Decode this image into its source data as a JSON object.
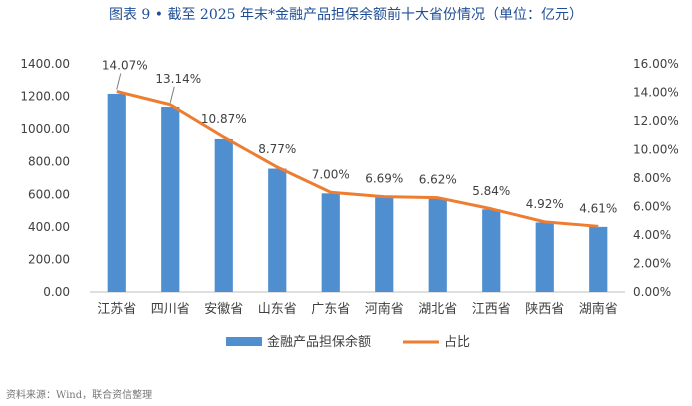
{
  "chart_data": {
    "type": "bar+line",
    "title": "图表 9 •  截至 2025 年末*金融产品担保余额前十大省份情况（单位：亿元）",
    "categories": [
      "江苏省",
      "四川省",
      "安徽省",
      "山东省",
      "广东省",
      "河南省",
      "湖北省",
      "江西省",
      "陕西省",
      "湖南省"
    ],
    "series": [
      {
        "name": "金融产品担保余额",
        "type": "bar",
        "axis": "left",
        "color": "#4f8fd0",
        "values": [
          1216,
          1136,
          940,
          758,
          606,
          580,
          574,
          508,
          427,
          400
        ]
      },
      {
        "name": "占比",
        "type": "line",
        "axis": "right",
        "color": "#ed7d31",
        "values": [
          14.07,
          13.14,
          10.87,
          8.77,
          7.0,
          6.69,
          6.62,
          5.84,
          4.92,
          4.61
        ],
        "labels": [
          "14.07%",
          "13.14%",
          "10.87%",
          "8.77%",
          "7.00%",
          "6.69%",
          "6.62%",
          "5.84%",
          "4.92%",
          "4.61%"
        ]
      }
    ],
    "y_left": {
      "ylim": [
        0,
        1400
      ],
      "ticks": [
        "0.00",
        "200.00",
        "400.00",
        "600.00",
        "800.00",
        "1000.00",
        "1200.00",
        "1400.00"
      ]
    },
    "y_right": {
      "ylim": [
        0,
        16
      ],
      "ticks": [
        "0.00%",
        "2.00%",
        "4.00%",
        "6.00%",
        "8.00%",
        "10.00%",
        "12.00%",
        "14.00%",
        "16.00%"
      ]
    },
    "grid": false,
    "legend_position": "bottom"
  },
  "source": "资料来源：Wind，联合资信整理"
}
